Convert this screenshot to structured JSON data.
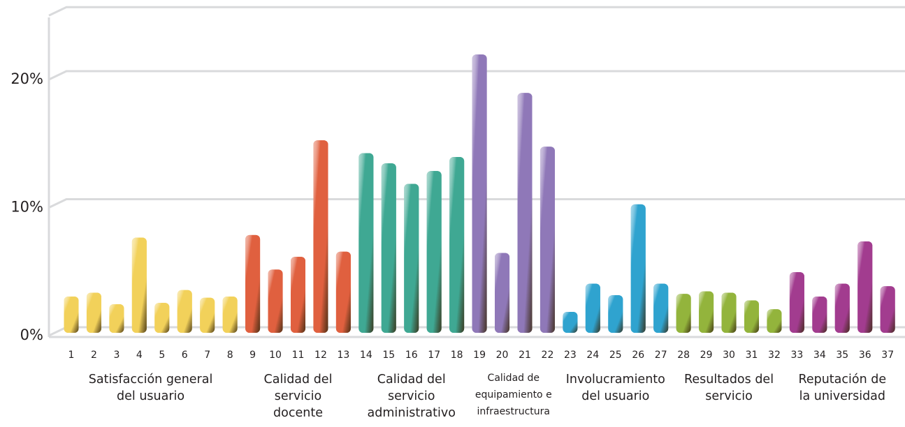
{
  "chart_data": {
    "type": "bar",
    "title": "",
    "xlabel": "",
    "ylabel": "",
    "ylim": [
      0,
      25
    ],
    "yticks": [
      0,
      10,
      20
    ],
    "ytick_labels": [
      "0%",
      "10%",
      "20%"
    ],
    "grid": true,
    "categories": [
      "1",
      "2",
      "3",
      "4",
      "5",
      "6",
      "7",
      "8",
      "9",
      "10",
      "11",
      "12",
      "13",
      "14",
      "15",
      "16",
      "17",
      "18",
      "19",
      "20",
      "21",
      "22",
      "23",
      "24",
      "25",
      "26",
      "27",
      "28",
      "29",
      "30",
      "31",
      "32",
      "33",
      "34",
      "35",
      "36",
      "37"
    ],
    "values": [
      2.4,
      2.7,
      1.8,
      7.0,
      1.9,
      2.9,
      2.3,
      2.4,
      7.2,
      4.5,
      5.5,
      14.6,
      5.9,
      13.6,
      12.8,
      11.2,
      12.2,
      13.3,
      21.3,
      5.8,
      18.3,
      14.1,
      1.2,
      3.4,
      2.5,
      9.6,
      3.4,
      2.6,
      2.8,
      2.7,
      2.1,
      1.4,
      4.3,
      2.4,
      3.4,
      6.7,
      3.2
    ],
    "groups": [
      {
        "label": [
          "Satisfacción general",
          "del usuario"
        ],
        "from": 1,
        "to": 8,
        "color": "#f2d15a"
      },
      {
        "label": [
          "Calidad del",
          "servicio",
          "docente"
        ],
        "from": 9,
        "to": 13,
        "color": "#e0603f"
      },
      {
        "label": [
          "Calidad del",
          "servicio",
          "administrativo"
        ],
        "from": 14,
        "to": 18,
        "color": "#3fa893"
      },
      {
        "label": [
          "Calidad de",
          "equipamiento e",
          "infraestructura"
        ],
        "from": 19,
        "to": 22,
        "color": "#8f78b8",
        "small": true
      },
      {
        "label": [
          "Involucramiento",
          "del usuario"
        ],
        "from": 23,
        "to": 27,
        "color": "#2fa3cf"
      },
      {
        "label": [
          "Resultados del",
          "servicio"
        ],
        "from": 28,
        "to": 32,
        "color": "#93b43c"
      },
      {
        "label": [
          "Reputación de",
          "la universidad"
        ],
        "from": 33,
        "to": 37,
        "color": "#a23c8f"
      }
    ],
    "grid_color": "#d9dadc"
  }
}
